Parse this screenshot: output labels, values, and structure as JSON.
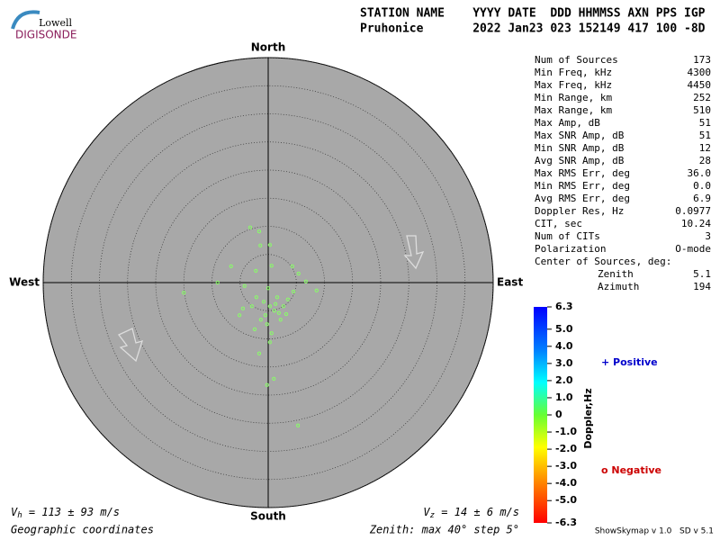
{
  "header": {
    "logo_top": "Lowell",
    "logo_bottom": "DIGISONDE",
    "line1": "STATION NAME    YYYY DATE  DDD HHMMSS AXN PPS IGP",
    "line2": "Pruhonice       2022 Jan23 023 152149 417 100 -8D"
  },
  "stats": {
    "rows": [
      [
        "Num of Sources",
        173
      ],
      [
        "Min Freq, kHz",
        4300
      ],
      [
        "Max Freq, kHz",
        4450
      ],
      [
        "Min Range, km",
        252
      ],
      [
        "Max Range, km",
        510
      ],
      [
        "Max Amp, dB",
        51
      ],
      [
        "Max SNR Amp, dB",
        51
      ],
      [
        "Min SNR Amp, dB",
        12
      ],
      [
        "Avg SNR Amp, dB",
        28
      ],
      [
        "Max RMS Err, deg",
        "36.0"
      ],
      [
        "Min RMS Err, deg",
        "0.0"
      ],
      [
        "Avg RMS Err, deg",
        6.9
      ],
      [
        "Doppler Res, Hz",
        0.0977
      ],
      [
        "CIT, sec",
        10.24
      ],
      [
        "Num of CITs",
        3
      ],
      [
        "Polarization",
        "O-mode"
      ]
    ],
    "center_title": "Center of Sources, deg:",
    "center_rows": [
      [
        "Zenith",
        5.1
      ],
      [
        "Azimuth",
        194
      ]
    ]
  },
  "chart_data": {
    "type": "skymap",
    "color": "#88ff66",
    "directions": {
      "north": "North",
      "south": "South",
      "east": "East",
      "west": "West"
    },
    "xlim": [
      -40,
      40
    ],
    "ylim": [
      -40,
      40
    ],
    "rings": [
      5,
      10,
      15,
      20,
      25,
      30,
      35,
      40
    ],
    "x": [
      -3.2,
      -1.6,
      -1.4,
      0.3,
      0.6,
      -6.6,
      -2.2,
      -9.0,
      -15.0,
      -5.1,
      -4.5,
      4.3,
      5.4,
      8.6,
      6.7,
      0.3,
      1.1,
      1.9,
      -0.5,
      -1.3,
      2.7,
      3.5,
      -0.2,
      0.6,
      -1.6,
      -0.2,
      1.0,
      5.3,
      -2.9,
      -2.1,
      1.6,
      2.2,
      0,
      -0.8,
      1.3,
      3.2,
      -2.4,
      -4.2,
      4.5,
      0.3
    ],
    "y": [
      9.8,
      9.1,
      6.6,
      6.7,
      3.0,
      2.9,
      2.1,
      0,
      -1.8,
      -5.8,
      -4.6,
      2.9,
      1.6,
      -1.4,
      0.2,
      -4.2,
      -5.0,
      -5.4,
      -5.8,
      -6.6,
      -4.2,
      -3.0,
      -7.4,
      -9.0,
      -12.6,
      -18.2,
      -17.1,
      -25.4,
      -4.2,
      -2.6,
      -2.6,
      -6.6,
      -1.0,
      -3.4,
      -3.8,
      -5.6,
      -8.3,
      -0.6,
      -1.6,
      -10.6
    ],
    "colorbar": {
      "label": "Doppler,Hz",
      "lim": [
        -6.3,
        6.3
      ],
      "ticks": [
        6.3,
        {
          "value": 5,
          "label": "5.0"
        },
        {
          "value": 4,
          "label": "4.0"
        },
        {
          "value": 3,
          "label": "3.0"
        },
        {
          "value": 2,
          "label": "2.0"
        },
        {
          "value": 1,
          "label": "1.0"
        },
        0,
        {
          "value": -1,
          "label": "-1.0"
        },
        {
          "value": -2,
          "label": "-2.0"
        },
        {
          "value": -3,
          "label": "-3.0"
        },
        {
          "value": -4,
          "label": "-4.0"
        },
        {
          "value": -5,
          "label": "-5.0"
        },
        -6.3
      ]
    },
    "legend": {
      "positive": "+ Positive",
      "negative": "o Negative"
    }
  },
  "footer": {
    "vh": {
      "symbol": "V",
      "sub": "h",
      "text": " = 113 ± 93 m/s"
    },
    "vz": {
      "symbol": "V",
      "sub": "z",
      "text": " = 14 ± 6 m/s"
    },
    "coords": "Geographic coordinates",
    "zenith": "Zenith: max 40°  step 5°",
    "credits": "ShowSkymap v 1.0   SD v 5.1"
  }
}
